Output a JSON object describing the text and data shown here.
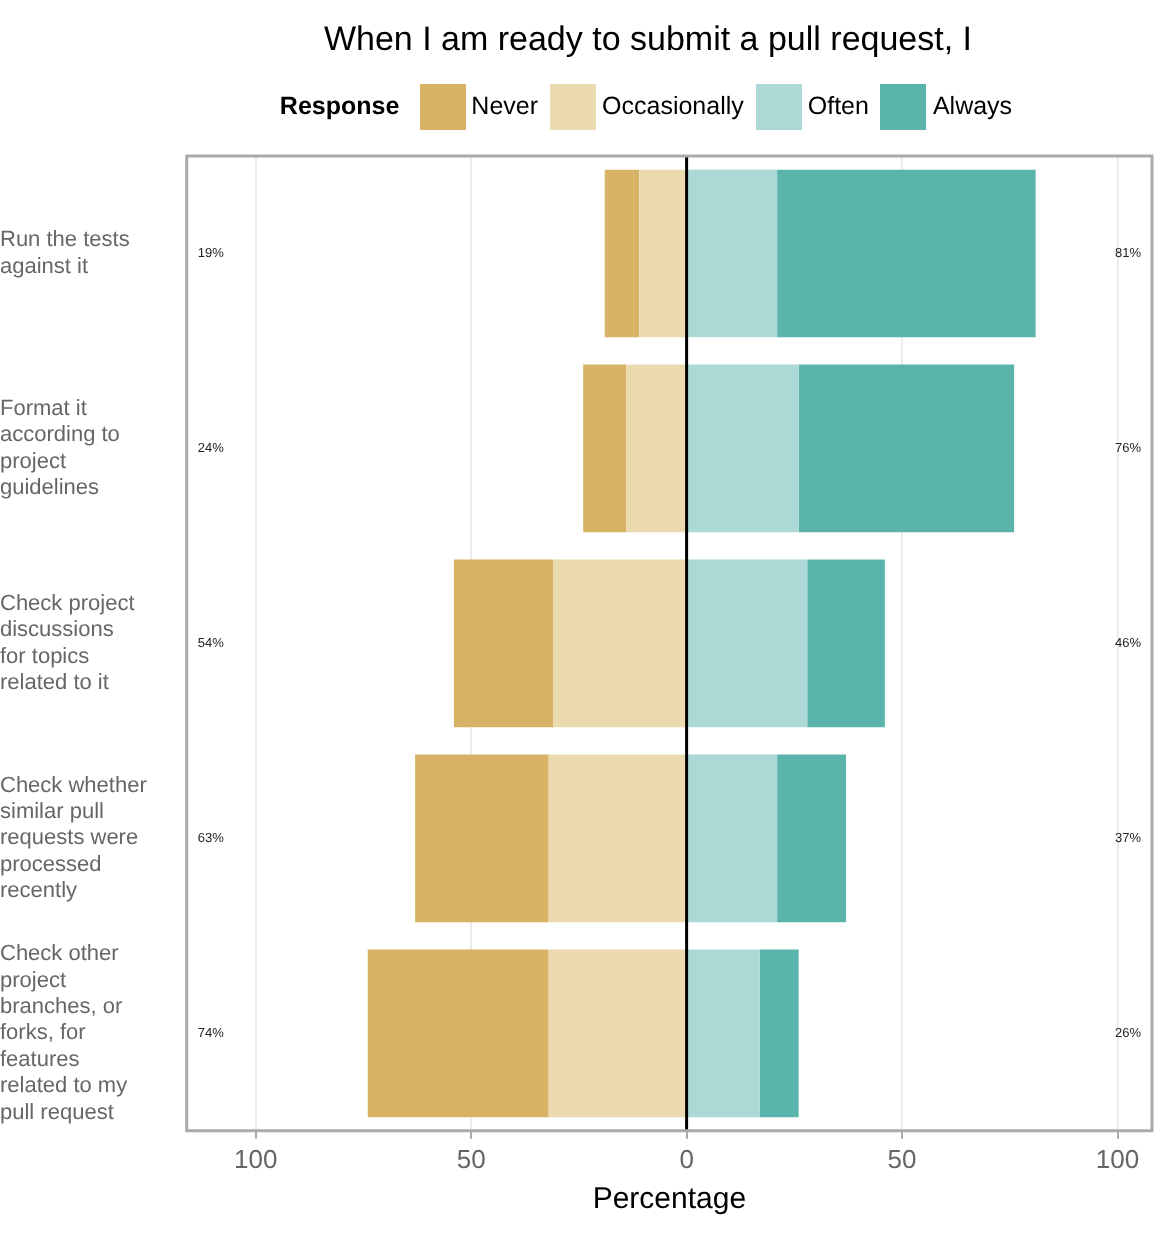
{
  "chart_data": {
    "type": "bar",
    "orientation": "horizontal",
    "stacked": true,
    "title": "When I am ready to submit a pull request, I",
    "xlabel": "Percentage",
    "legend_title": "Response",
    "legend": "top",
    "grid": "x",
    "categories": [
      "Run the tests against it",
      "Format it according to project guidelines",
      "Check project discussions for topics related to it",
      "Check whether similar pull requests were processed recently",
      "Check other project branches, or forks, for features related to my pull request"
    ],
    "series": [
      {
        "name": "Occasionally",
        "color": "#ebdab0",
        "values": [
          -11,
          -14,
          -31,
          -32,
          -32
        ]
      },
      {
        "name": "Never",
        "color": "#d9b365",
        "values": [
          -8,
          -10,
          -23,
          -31,
          -42
        ]
      },
      {
        "name": "Often",
        "color": "#acd9d6",
        "values": [
          21,
          26,
          28,
          21,
          17
        ]
      },
      {
        "name": "Always",
        "color": "#5ab4ac",
        "values": [
          60,
          50,
          18,
          16,
          9
        ]
      }
    ],
    "xlim": [
      -116,
      108
    ],
    "xticks": [
      {
        "value": -100,
        "label": "100"
      },
      {
        "value": -50,
        "label": "50"
      },
      0,
      50,
      100
    ],
    "ref_lines": [
      {
        "axis": "x",
        "value": 0,
        "color": "#000000"
      }
    ],
    "annotations": [
      "19%",
      "81%",
      "24%",
      "76%",
      "54%",
      "46%",
      "63%",
      "37%",
      "74%",
      "26%"
    ]
  }
}
